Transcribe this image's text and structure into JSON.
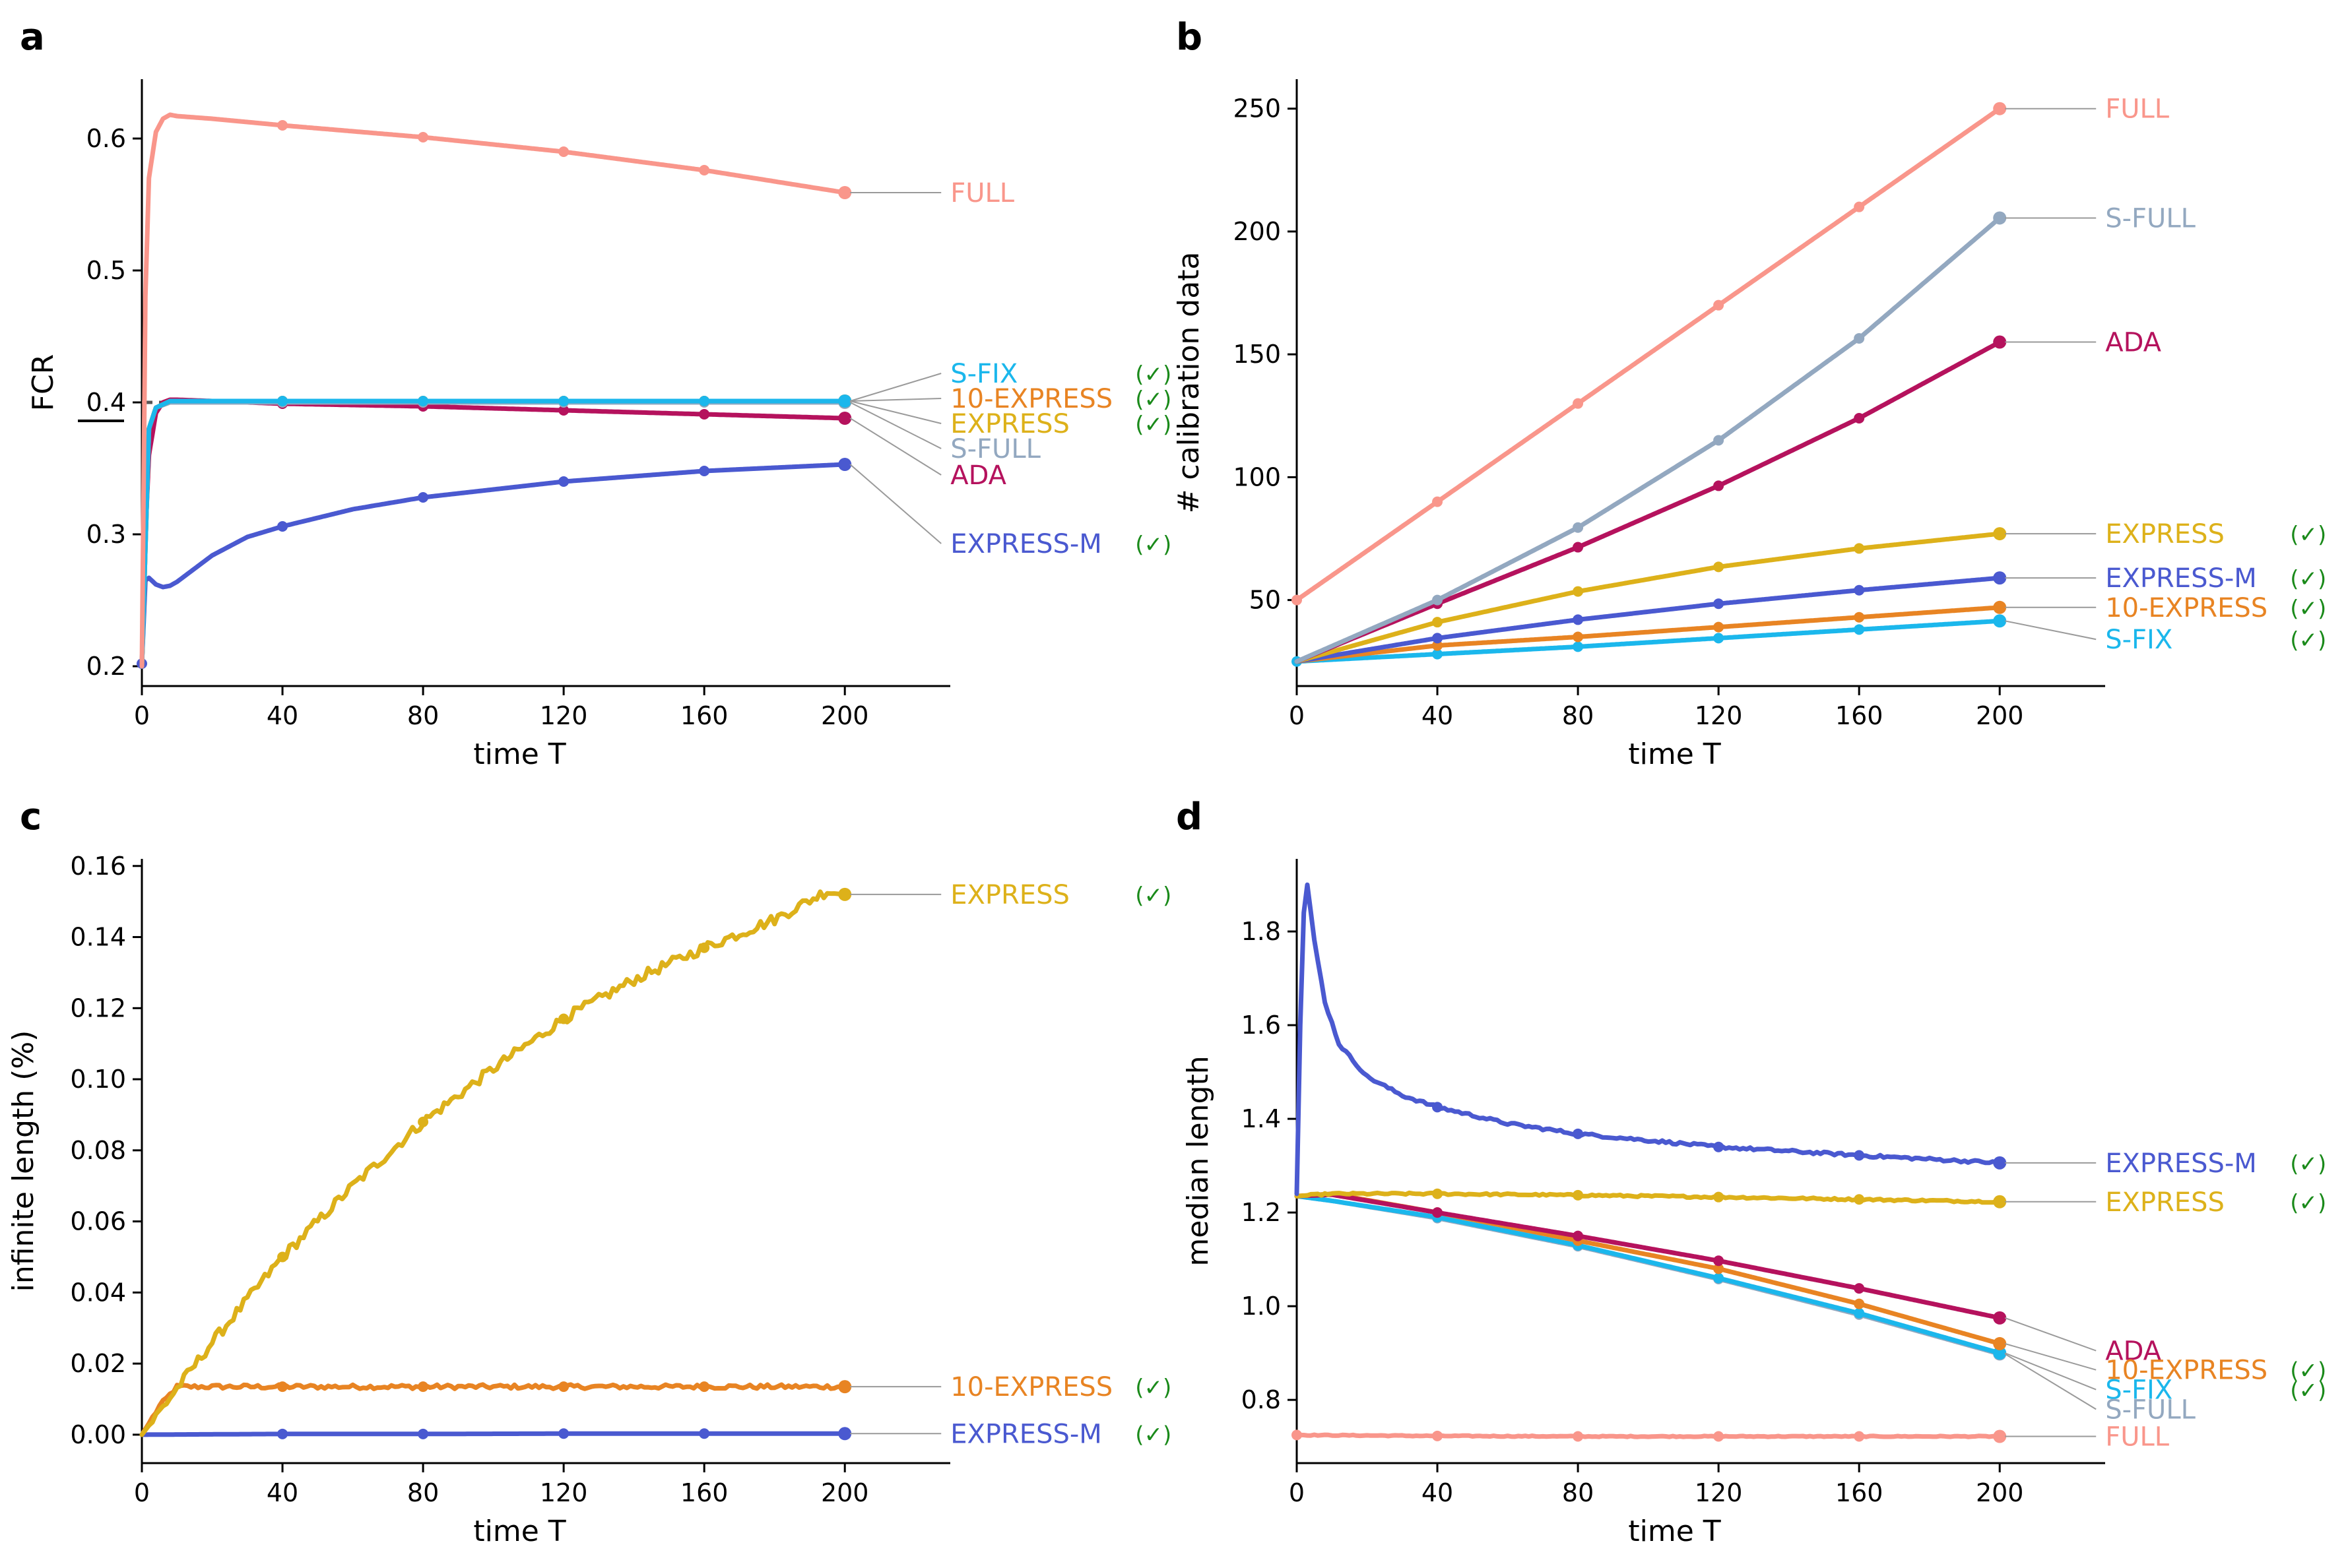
{
  "figure": {
    "description_free": true
  },
  "colors": {
    "FULL": "#f9968b",
    "S-FULL": "#93a8c0",
    "ADA": "#b5125d",
    "EXPRESS": "#ddb11a",
    "EXPRESS-M": "#4a59d0",
    "10-EXPRESS": "#e88423",
    "S-FIX": "#1bb7ec",
    "check": "#1a8a1a",
    "leader": "#9a9a9a"
  },
  "check_mark": "(✓)",
  "chart_data": [
    {
      "panel": "a",
      "type": "line",
      "xlabel": "time T",
      "ylabel": "FCR",
      "xlim": [
        0,
        230
      ],
      "ylim": [
        0.185,
        0.645
      ],
      "xticks": [
        0,
        40,
        80,
        120,
        160,
        200
      ],
      "yticks": [
        0.2,
        0.3,
        0.4,
        0.5,
        0.6
      ],
      "ytick_labels": [
        "0.2",
        "0.3",
        "0.4",
        "0.5",
        "0.6"
      ],
      "reference_line": 0.4,
      "series": [
        {
          "name": "FULL",
          "x": [
            0,
            1,
            2,
            4,
            6,
            8,
            10,
            20,
            40,
            80,
            120,
            160,
            200
          ],
          "y": [
            0.2,
            0.48,
            0.57,
            0.605,
            0.615,
            0.618,
            0.617,
            0.615,
            0.61,
            0.601,
            0.59,
            0.576,
            0.559
          ],
          "markers": [
            40,
            80,
            120,
            160,
            200
          ],
          "label_y": 0.559,
          "check": false
        },
        {
          "name": "S-FIX",
          "x": [
            0,
            2,
            4,
            8,
            40,
            80,
            120,
            160,
            200
          ],
          "y": [
            0.2,
            0.38,
            0.396,
            0.401,
            0.401,
            0.401,
            0.401,
            0.401,
            0.401
          ],
          "markers": [
            40,
            80,
            120,
            160,
            200
          ],
          "label_y": 0.422,
          "check": true
        },
        {
          "name": "10-EXPRESS",
          "x": [
            0,
            2,
            4,
            8,
            40,
            80,
            120,
            160,
            200
          ],
          "y": [
            0.2,
            0.38,
            0.396,
            0.401,
            0.401,
            0.401,
            0.401,
            0.401,
            0.401
          ],
          "markers": [
            40,
            80,
            120,
            160,
            200
          ],
          "label_y": 0.403,
          "check": true
        },
        {
          "name": "EXPRESS",
          "x": [
            0,
            2,
            4,
            8,
            40,
            80,
            120,
            160,
            200
          ],
          "y": [
            0.2,
            0.38,
            0.396,
            0.401,
            0.401,
            0.401,
            0.401,
            0.401,
            0.401
          ],
          "markers": [
            40,
            80,
            120,
            160,
            200
          ],
          "label_y": 0.384,
          "check": true
        },
        {
          "name": "S-FULL",
          "x": [
            0,
            2,
            4,
            8,
            40,
            80,
            120,
            160,
            200
          ],
          "y": [
            0.2,
            0.38,
            0.396,
            0.4,
            0.4,
            0.4,
            0.4,
            0.4,
            0.4
          ],
          "markers": [
            40,
            80,
            120,
            160,
            200
          ],
          "label_y": 0.365,
          "check": false
        },
        {
          "name": "ADA",
          "x": [
            0,
            1,
            2,
            4,
            6,
            8,
            10,
            20,
            40,
            80,
            120,
            160,
            200
          ],
          "y": [
            0.2,
            0.3,
            0.36,
            0.392,
            0.4,
            0.402,
            0.402,
            0.401,
            0.399,
            0.397,
            0.394,
            0.391,
            0.388
          ],
          "markers": [
            40,
            80,
            120,
            160,
            200
          ],
          "label_y": 0.345,
          "check": false
        },
        {
          "name": "EXPRESS-M",
          "x": [
            0,
            1,
            2,
            4,
            6,
            8,
            10,
            15,
            20,
            30,
            40,
            60,
            80,
            120,
            160,
            200
          ],
          "y": [
            0.202,
            0.265,
            0.267,
            0.262,
            0.26,
            0.261,
            0.264,
            0.274,
            0.284,
            0.298,
            0.306,
            0.319,
            0.328,
            0.34,
            0.348,
            0.353
          ],
          "markers": [
            0,
            40,
            80,
            120,
            160,
            200
          ],
          "label_y": 0.293,
          "check": true
        }
      ]
    },
    {
      "panel": "b",
      "type": "line",
      "xlabel": "time T",
      "ylabel": "# calibration data",
      "xlim": [
        0,
        230
      ],
      "ylim": [
        15,
        262
      ],
      "xticks": [
        0,
        40,
        80,
        120,
        160,
        200
      ],
      "yticks": [
        50,
        100,
        150,
        200,
        250
      ],
      "ytick_labels": [
        "50",
        "100",
        "150",
        "200",
        "250"
      ],
      "series": [
        {
          "name": "FULL",
          "x": [
            0,
            40,
            80,
            120,
            160,
            200
          ],
          "y": [
            50,
            90,
            130,
            170,
            210,
            250
          ],
          "markers": [
            0,
            40,
            80,
            120,
            160,
            200
          ],
          "label_y": 250,
          "check": false
        },
        {
          "name": "S-FULL",
          "x": [
            0,
            40,
            80,
            120,
            160,
            200
          ],
          "y": [
            25,
            50,
            79.5,
            115,
            156.5,
            205.5
          ],
          "markers": [
            40,
            80,
            120,
            160,
            200
          ],
          "label_y": 205.5,
          "check": false
        },
        {
          "name": "ADA",
          "x": [
            0,
            40,
            80,
            120,
            160,
            200
          ],
          "y": [
            25,
            48.5,
            71.5,
            96.5,
            124,
            155
          ],
          "markers": [
            40,
            80,
            120,
            160,
            200
          ],
          "label_y": 155,
          "check": false
        },
        {
          "name": "EXPRESS",
          "x": [
            0,
            40,
            80,
            120,
            160,
            200
          ],
          "y": [
            25,
            41,
            53.5,
            63.5,
            71,
            77
          ],
          "markers": [
            40,
            80,
            120,
            160,
            200
          ],
          "label_y": 77,
          "check": true
        },
        {
          "name": "EXPRESS-M",
          "x": [
            0,
            40,
            80,
            120,
            160,
            200
          ],
          "y": [
            25,
            34.5,
            42,
            48.5,
            54,
            59
          ],
          "markers": [
            40,
            80,
            120,
            160,
            200
          ],
          "label_y": 59,
          "check": true
        },
        {
          "name": "10-EXPRESS",
          "x": [
            0,
            40,
            80,
            120,
            160,
            200
          ],
          "y": [
            25,
            31.5,
            35,
            39,
            43,
            47
          ],
          "markers": [
            40,
            80,
            120,
            160,
            200
          ],
          "label_y": 47,
          "check": true
        },
        {
          "name": "S-FIX",
          "x": [
            0,
            40,
            80,
            120,
            160,
            200
          ],
          "y": [
            25,
            28,
            31,
            34.5,
            38,
            41.5
          ],
          "markers": [
            0,
            40,
            80,
            120,
            160,
            200
          ],
          "label_y": 34,
          "check": true
        }
      ]
    },
    {
      "panel": "c",
      "type": "line",
      "xlabel": "time T",
      "ylabel": "infinite length (%)",
      "xlim": [
        0,
        230
      ],
      "ylim": [
        -0.008,
        0.162
      ],
      "xticks": [
        0,
        40,
        80,
        120,
        160,
        200
      ],
      "yticks": [
        0.0,
        0.02,
        0.04,
        0.06,
        0.08,
        0.1,
        0.12,
        0.14,
        0.16
      ],
      "ytick_labels": [
        "0.00",
        "0.02",
        "0.04",
        "0.06",
        "0.08",
        "0.10",
        "0.12",
        "0.14",
        "0.16"
      ],
      "series": [
        {
          "name": "EXPRESS",
          "x": [
            0,
            10,
            20,
            40,
            60,
            80,
            100,
            120,
            140,
            160,
            180,
            195,
            200
          ],
          "y": [
            0.0,
            0.013,
            0.026,
            0.05,
            0.07,
            0.088,
            0.103,
            0.117,
            0.128,
            0.137,
            0.145,
            0.153,
            0.152
          ],
          "markers": [
            40,
            80,
            120,
            160,
            200
          ],
          "label_y": 0.152,
          "check": true,
          "noise": 0.0015
        },
        {
          "name": "10-EXPRESS",
          "x": [
            0,
            5,
            10,
            40,
            80,
            120,
            160,
            200
          ],
          "y": [
            0.0,
            0.008,
            0.0135,
            0.0135,
            0.0135,
            0.0135,
            0.0135,
            0.0135
          ],
          "markers": [
            40,
            80,
            120,
            160,
            200
          ],
          "label_y": 0.0135,
          "check": true,
          "noise": 0.0006
        },
        {
          "name": "EXPRESS-M",
          "x": [
            0,
            40,
            80,
            120,
            160,
            200
          ],
          "y": [
            0.0,
            0.0002,
            0.0002,
            0.0003,
            0.0003,
            0.0003
          ],
          "markers": [
            40,
            80,
            120,
            160,
            200
          ],
          "label_y": 0.0003,
          "check": true,
          "noise": 0.0
        }
      ]
    },
    {
      "panel": "d",
      "type": "line",
      "xlabel": "time T",
      "ylabel": "median length",
      "xlim": [
        0,
        230
      ],
      "ylim": [
        0.665,
        1.955
      ],
      "xticks": [
        0,
        40,
        80,
        120,
        160,
        200
      ],
      "yticks": [
        0.8,
        1.0,
        1.2,
        1.4,
        1.6,
        1.8
      ],
      "ytick_labels": [
        "0.8",
        "1.0",
        "1.2",
        "1.4",
        "1.6",
        "1.8"
      ],
      "series": [
        {
          "name": "EXPRESS-M",
          "x": [
            0,
            1,
            2,
            3,
            5,
            8,
            12,
            20,
            30,
            40,
            60,
            80,
            120,
            160,
            200
          ],
          "y": [
            1.24,
            1.6,
            1.84,
            1.9,
            1.78,
            1.65,
            1.56,
            1.49,
            1.45,
            1.425,
            1.39,
            1.368,
            1.34,
            1.322,
            1.306
          ],
          "markers": [
            40,
            80,
            120,
            160,
            200
          ],
          "label_y": 1.306,
          "check": true,
          "noise": 0.003
        },
        {
          "name": "EXPRESS",
          "x": [
            0,
            10,
            40,
            80,
            120,
            160,
            200
          ],
          "y": [
            1.235,
            1.24,
            1.24,
            1.237,
            1.233,
            1.228,
            1.223
          ],
          "markers": [
            40,
            80,
            120,
            160,
            200
          ],
          "label_y": 1.223,
          "check": true,
          "noise": 0.002
        },
        {
          "name": "ADA",
          "x": [
            0,
            10,
            40,
            80,
            120,
            160,
            200
          ],
          "y": [
            1.235,
            1.238,
            1.2,
            1.15,
            1.097,
            1.038,
            0.975
          ],
          "markers": [
            40,
            80,
            120,
            160,
            200
          ],
          "label_y": 0.905,
          "check": false,
          "noise": 0.0
        },
        {
          "name": "10-EXPRESS",
          "x": [
            0,
            10,
            40,
            80,
            120,
            160,
            200
          ],
          "y": [
            1.235,
            1.24,
            1.2,
            1.14,
            1.08,
            1.005,
            0.92
          ],
          "markers": [
            40,
            80,
            120,
            160,
            200
          ],
          "label_y": 0.864,
          "check": true,
          "noise": 0.0
        },
        {
          "name": "S-FIX",
          "x": [
            0,
            10,
            40,
            80,
            120,
            160,
            200
          ],
          "y": [
            1.235,
            1.225,
            1.19,
            1.13,
            1.06,
            0.985,
            0.9
          ],
          "markers": [
            40,
            80,
            120,
            160,
            200
          ],
          "label_y": 0.822,
          "check": true,
          "noise": 0.0
        },
        {
          "name": "S-FULL",
          "x": [
            0,
            10,
            40,
            80,
            120,
            160,
            200
          ],
          "y": [
            1.235,
            1.225,
            1.188,
            1.128,
            1.058,
            0.982,
            0.898
          ],
          "markers": [
            40,
            80,
            120,
            160,
            200
          ],
          "label_y": 0.78,
          "check": false,
          "noise": 0.0
        },
        {
          "name": "FULL",
          "x": [
            0,
            40,
            80,
            120,
            160,
            200
          ],
          "y": [
            0.725,
            0.723,
            0.722,
            0.722,
            0.722,
            0.722
          ],
          "markers": [
            0,
            40,
            80,
            120,
            160,
            200
          ],
          "label_y": 0.722,
          "check": false,
          "noise": 0.001
        }
      ]
    }
  ]
}
